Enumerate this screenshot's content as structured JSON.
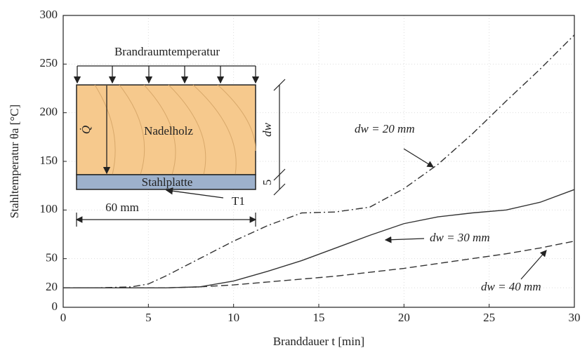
{
  "chart_data": {
    "type": "line",
    "x_label": "Branddauer t [min]",
    "y_label": "Stahltemperatur θa [°C]",
    "x": [
      0,
      2,
      4,
      5,
      6,
      8,
      10,
      12,
      14,
      16,
      18,
      20,
      22,
      24,
      26,
      28,
      30
    ],
    "series": [
      {
        "name": "dw = 20 mm",
        "color": "#333333",
        "dash": "dashdot",
        "values": [
          20,
          20,
          21,
          24,
          32,
          50,
          68,
          84,
          97,
          98,
          103,
          122,
          147,
          178,
          212,
          245,
          280
        ]
      },
      {
        "name": "dw = 30 mm",
        "color": "#333333",
        "dash": "solid",
        "values": [
          20,
          20,
          20,
          20,
          20,
          21,
          27,
          37,
          48,
          61,
          74,
          86,
          93,
          97,
          100,
          108,
          121
        ]
      },
      {
        "name": "dw = 40 mm",
        "color": "#333333",
        "dash": "dashed",
        "values": [
          20,
          20,
          20,
          20,
          20,
          21,
          23,
          26,
          29,
          32,
          36,
          40,
          45,
          50,
          55,
          61,
          68
        ]
      }
    ],
    "xlim": [
      0,
      30
    ],
    "xticks": [
      0,
      5,
      10,
      15,
      20,
      25,
      30
    ],
    "ylim": [
      0,
      300
    ],
    "yticks": [
      0,
      20,
      50,
      100,
      150,
      200,
      250,
      300
    ],
    "grid": true,
    "inset_labels": {
      "top": "Brandraumtemperatur",
      "wood": "Nadelholz",
      "flux": "Q̇",
      "steel": "Stahlplatte",
      "sensor": "T1",
      "width": "60 mm",
      "depth": "dw",
      "plate": "5"
    }
  }
}
